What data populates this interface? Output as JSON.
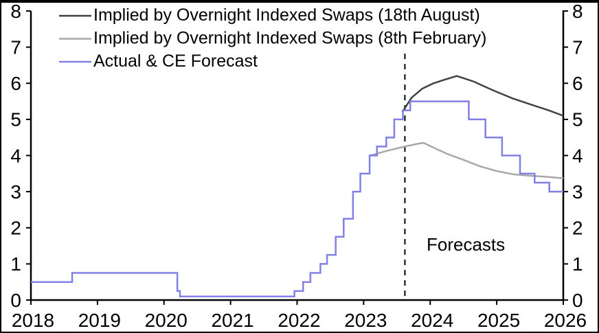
{
  "page": {
    "background": "#ffffff",
    "border_color": "#000000"
  },
  "chart_data": {
    "type": "line",
    "title": "",
    "xlabel": "",
    "ylabel": "",
    "grid": false,
    "axis_color": "#000000",
    "x_axis": {
      "range": [
        2018,
        2026
      ],
      "ticks": [
        2018,
        2019,
        2020,
        2021,
        2022,
        2023,
        2024,
        2025,
        2026
      ]
    },
    "y_axis": {
      "range": [
        0,
        8
      ],
      "ticks": [
        0,
        1,
        2,
        3,
        4,
        5,
        6,
        7,
        8
      ],
      "dual": true
    },
    "legend": {
      "position": "top-left"
    },
    "annotation": {
      "text": "Forecasts",
      "x": 2024.7,
      "y": 1.6
    },
    "forecast_divider": {
      "x": 2023.62,
      "y_top": 6.82,
      "y_bottom": 0,
      "style": "dashed",
      "color": "#000000"
    },
    "series": [
      {
        "key": "ois-18-august",
        "name": "Implied by Overnight Indexed Swaps (18th August)",
        "color": "#404040",
        "line_type": "line",
        "z": 1,
        "points": [
          [
            2023.58,
            5.2
          ],
          [
            2023.72,
            5.6
          ],
          [
            2023.88,
            5.85
          ],
          [
            2024.05,
            6.0
          ],
          [
            2024.22,
            6.1
          ],
          [
            2024.4,
            6.2
          ],
          [
            2024.65,
            6.05
          ],
          [
            2024.95,
            5.8
          ],
          [
            2025.24,
            5.58
          ],
          [
            2025.5,
            5.42
          ],
          [
            2025.78,
            5.25
          ],
          [
            2026.0,
            5.1
          ]
        ]
      },
      {
        "key": "ois-8-february",
        "name": "Implied by Overnight Indexed Swaps (8th February)",
        "color": "#a8a8a8",
        "line_type": "line",
        "z": 0,
        "points": [
          [
            2023.1,
            4.0
          ],
          [
            2023.35,
            4.13
          ],
          [
            2023.6,
            4.24
          ],
          [
            2023.8,
            4.32
          ],
          [
            2023.9,
            4.35
          ],
          [
            2024.05,
            4.22
          ],
          [
            2024.25,
            4.05
          ],
          [
            2024.5,
            3.88
          ],
          [
            2024.75,
            3.7
          ],
          [
            2025.0,
            3.57
          ],
          [
            2025.25,
            3.48
          ],
          [
            2025.5,
            3.44
          ],
          [
            2025.75,
            3.41
          ],
          [
            2026.0,
            3.37
          ]
        ]
      },
      {
        "key": "actual-ce-forecast",
        "name": "Actual & CE Forecast",
        "color": "#8080e6",
        "line_type": "step",
        "z": 2,
        "points": [
          [
            2018.0,
            0.5
          ],
          [
            2018.62,
            0.75
          ],
          [
            2020.2,
            0.25
          ],
          [
            2020.24,
            0.1
          ],
          [
            2021.96,
            0.25
          ],
          [
            2022.09,
            0.5
          ],
          [
            2022.2,
            0.75
          ],
          [
            2022.35,
            1.0
          ],
          [
            2022.45,
            1.25
          ],
          [
            2022.58,
            1.75
          ],
          [
            2022.7,
            2.25
          ],
          [
            2022.84,
            3.0
          ],
          [
            2022.95,
            3.5
          ],
          [
            2023.09,
            4.0
          ],
          [
            2023.2,
            4.25
          ],
          [
            2023.34,
            4.5
          ],
          [
            2023.46,
            5.0
          ],
          [
            2023.59,
            5.25
          ],
          [
            2023.7,
            5.5
          ],
          [
            2024.58,
            5.0
          ],
          [
            2024.83,
            4.5
          ],
          [
            2025.08,
            4.0
          ],
          [
            2025.35,
            3.5
          ],
          [
            2025.57,
            3.25
          ],
          [
            2025.79,
            3.0
          ],
          [
            2026.0,
            3.0
          ]
        ]
      }
    ]
  }
}
